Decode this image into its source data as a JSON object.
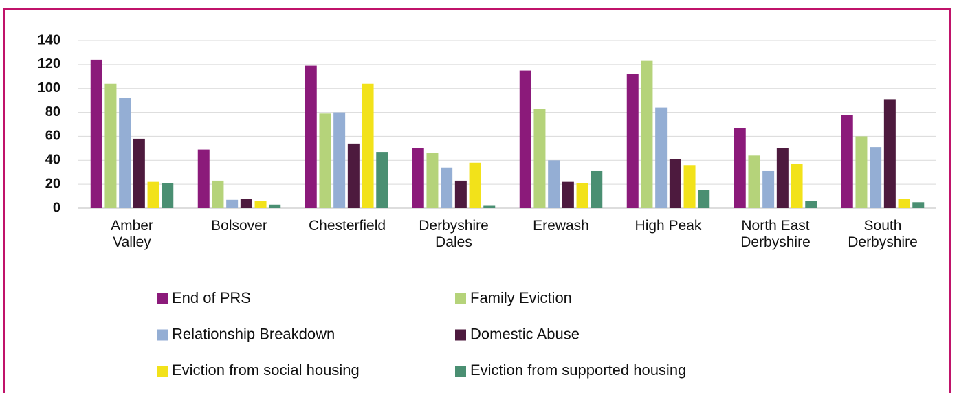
{
  "chart_data": {
    "type": "bar",
    "categories": [
      "Amber Valley",
      "Bolsover",
      "Chesterfield",
      "Derbyshire Dales",
      "Erewash",
      "High Peak",
      "North East Derbyshire",
      "South Derbyshire"
    ],
    "series": [
      {
        "name": "End of PRS",
        "color": "#8b1a7a",
        "values": [
          124,
          49,
          119,
          50,
          115,
          112,
          67,
          78
        ]
      },
      {
        "name": "Family Eviction",
        "color": "#b5d37a",
        "values": [
          104,
          23,
          79,
          46,
          83,
          123,
          44,
          60
        ]
      },
      {
        "name": "Relationship Breakdown",
        "color": "#94aed4",
        "values": [
          92,
          7,
          80,
          34,
          40,
          84,
          31,
          51
        ]
      },
      {
        "name": "Domestic Abuse",
        "color": "#4d1a3e",
        "values": [
          58,
          8,
          54,
          23,
          22,
          41,
          50,
          91
        ]
      },
      {
        "name": "Eviction from social housing",
        "color": "#f2e21a",
        "values": [
          22,
          6,
          104,
          38,
          21,
          36,
          37,
          8
        ]
      },
      {
        "name": "Eviction from supported housing",
        "color": "#4a8f72",
        "values": [
          21,
          3,
          47,
          2,
          31,
          15,
          6,
          5
        ]
      }
    ],
    "ylim": [
      0,
      140
    ],
    "yticks": [
      0,
      20,
      40,
      60,
      80,
      100,
      120,
      140
    ],
    "grid": true
  }
}
